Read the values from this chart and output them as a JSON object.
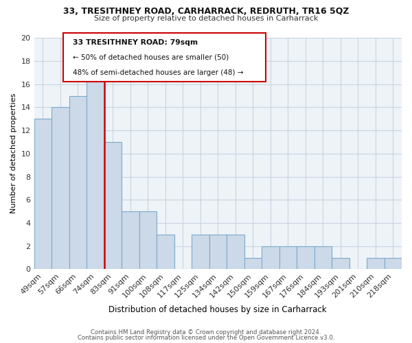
{
  "title1": "33, TRESITHNEY ROAD, CARHARRACK, REDRUTH, TR16 5QZ",
  "title2": "Size of property relative to detached houses in Carharrack",
  "xlabel": "Distribution of detached houses by size in Carharrack",
  "ylabel": "Number of detached properties",
  "bar_labels": [
    "49sqm",
    "57sqm",
    "66sqm",
    "74sqm",
    "83sqm",
    "91sqm",
    "100sqm",
    "108sqm",
    "117sqm",
    "125sqm",
    "134sqm",
    "142sqm",
    "150sqm",
    "159sqm",
    "167sqm",
    "176sqm",
    "184sqm",
    "193sqm",
    "201sqm",
    "210sqm",
    "218sqm"
  ],
  "bar_heights": [
    13,
    14,
    15,
    17,
    11,
    5,
    5,
    3,
    0,
    3,
    3,
    3,
    1,
    2,
    2,
    2,
    2,
    1,
    0,
    1,
    1
  ],
  "bar_color": "#ccd9e8",
  "bar_edgecolor": "#7aaac8",
  "vline_color": "#cc0000",
  "vline_pos": 3.5,
  "ylim": [
    0,
    20
  ],
  "yticks": [
    0,
    2,
    4,
    6,
    8,
    10,
    12,
    14,
    16,
    18,
    20
  ],
  "annotation_line1": "33 TRESITHNEY ROAD: 79sqm",
  "annotation_line2": "← 50% of detached houses are smaller (50)",
  "annotation_line3": "48% of semi-detached houses are larger (48) →",
  "footer_line1": "Contains HM Land Registry data © Crown copyright and database right 2024.",
  "footer_line2": "Contains public sector information licensed under the Open Government Licence v3.0.",
  "bg_color": "#ffffff",
  "plot_bg_color": "#eef3f8",
  "grid_color": "#c8d4e0"
}
